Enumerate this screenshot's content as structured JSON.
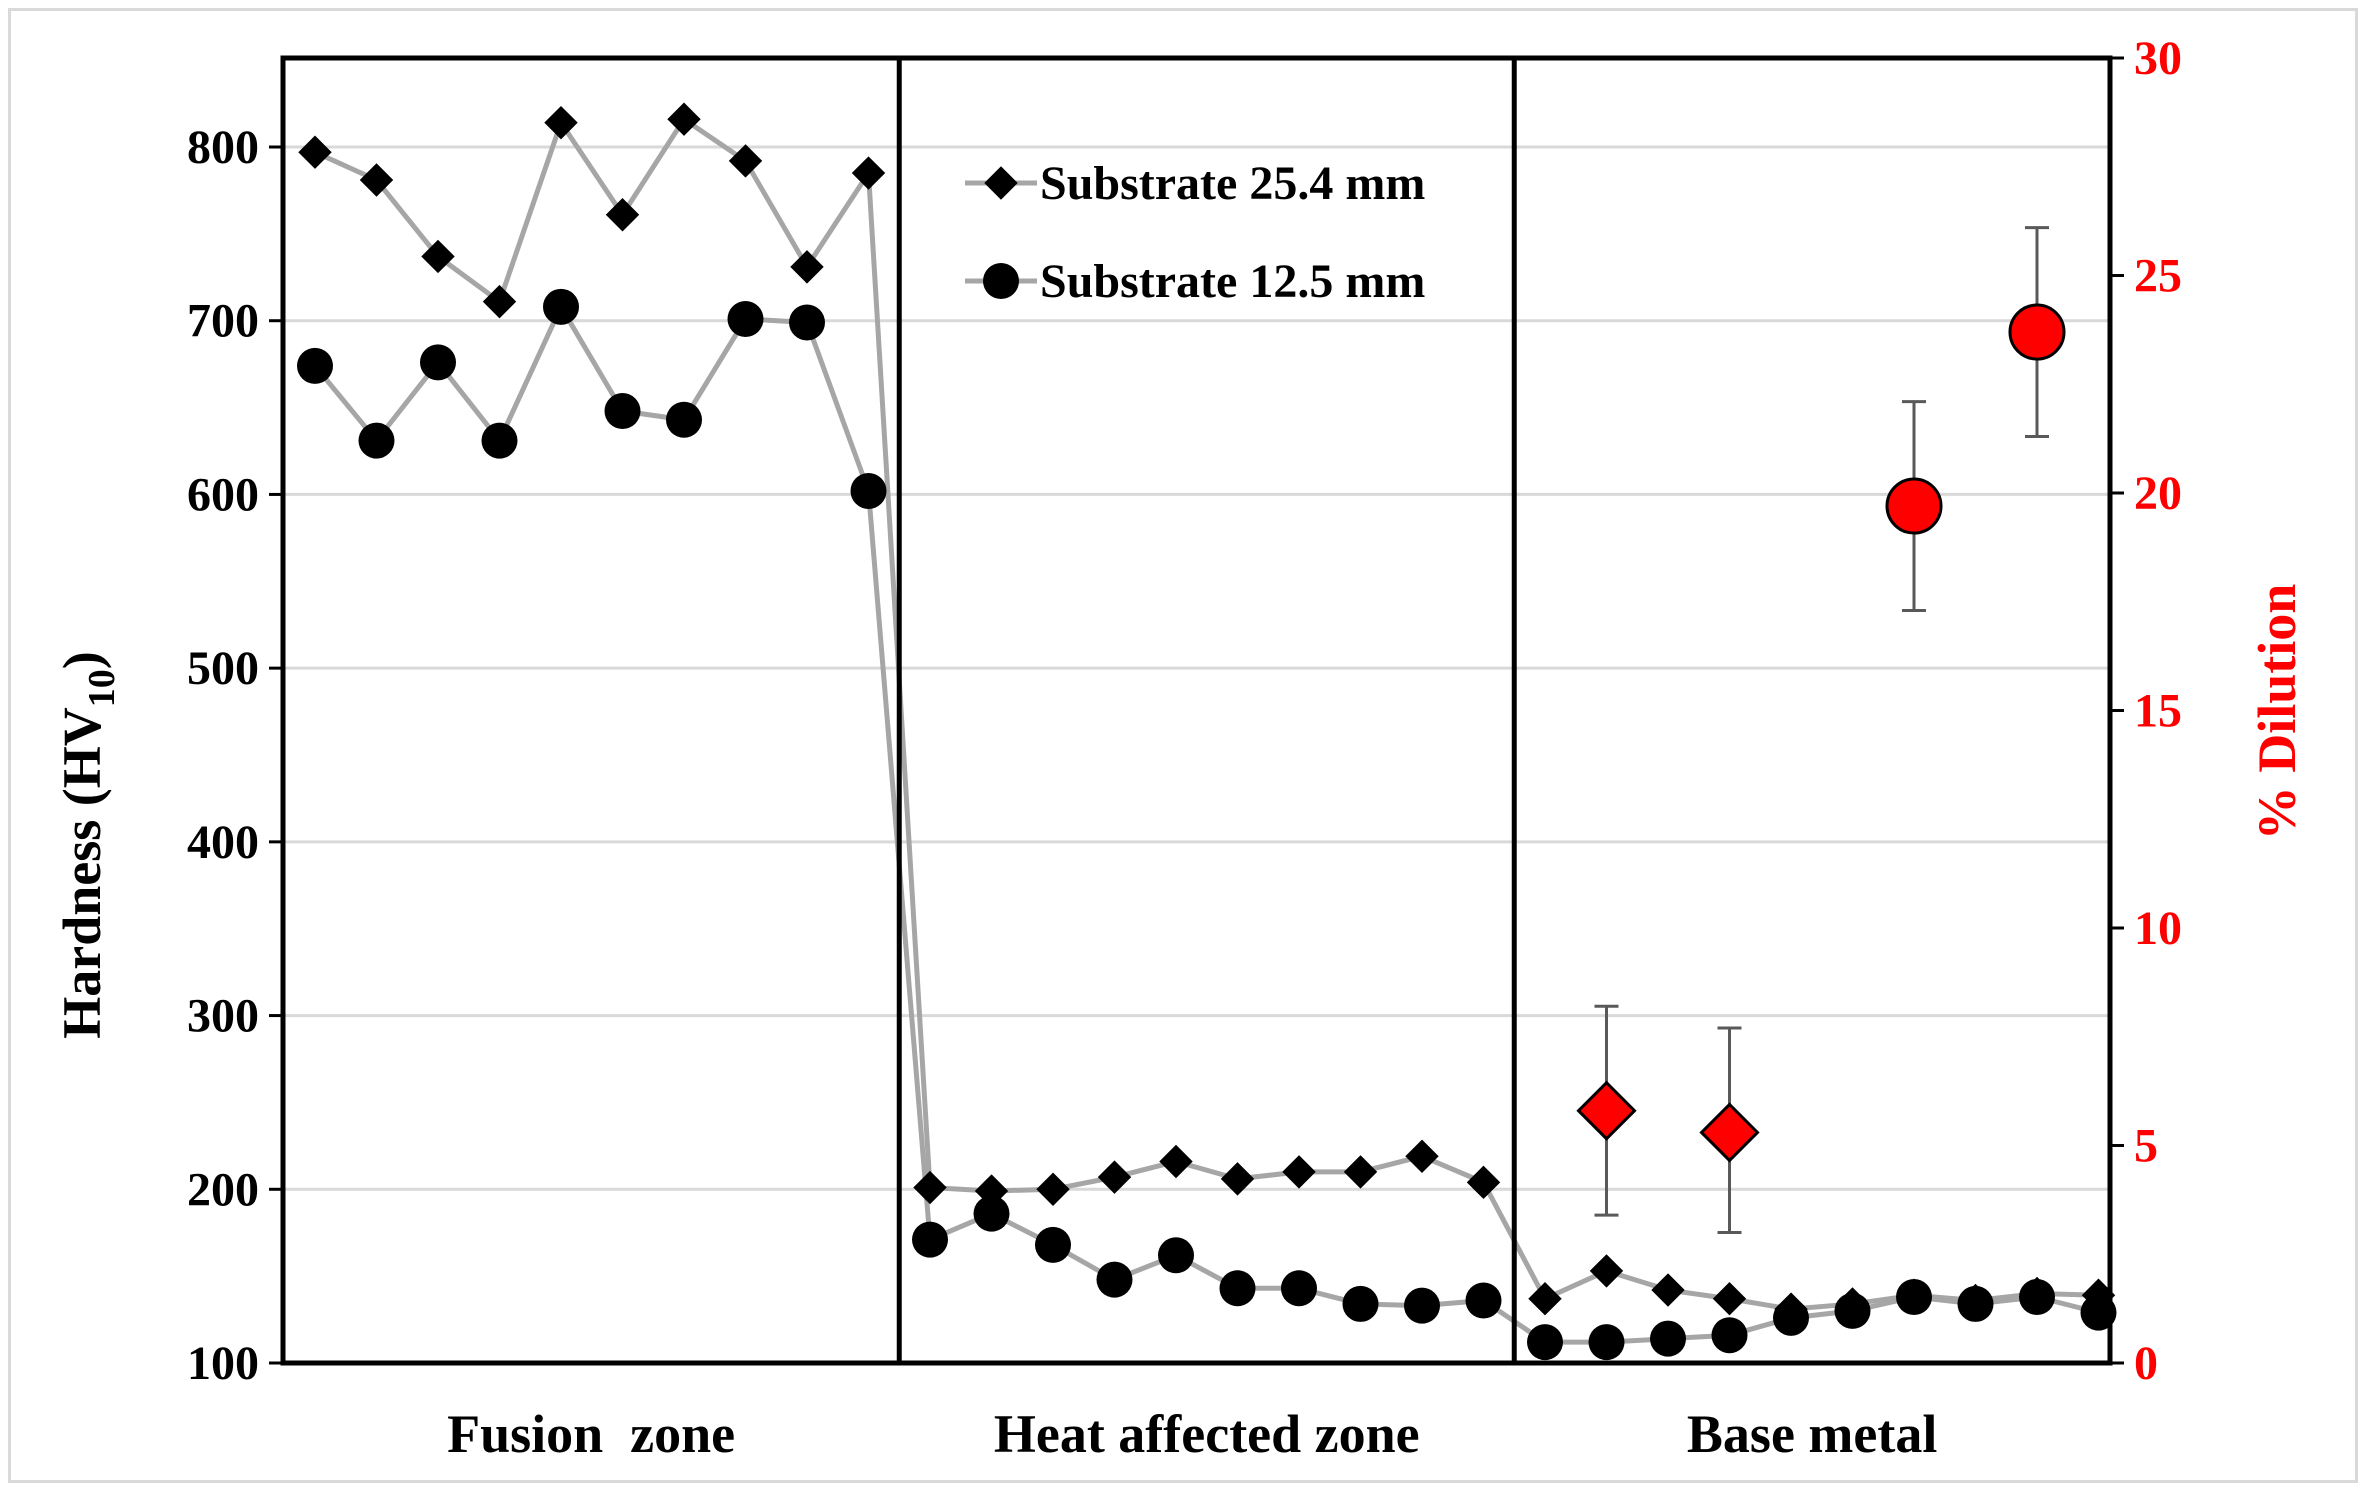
{
  "chart_data": {
    "type": "line",
    "title": "",
    "xlabel": "",
    "ylabel": "Hardness (HV",
    "ylabel_subscript": "10",
    "ylabel_close": ")",
    "y2label": "% Dilution",
    "ylim": [
      100,
      850
    ],
    "y2lim": [
      0,
      30
    ],
    "yticks": [
      "100",
      "200",
      "300",
      "400",
      "500",
      "600",
      "700",
      "800"
    ],
    "y2ticks": [
      "0",
      "5",
      "10",
      "15",
      "20",
      "25",
      "30"
    ],
    "grid": true,
    "legend_position": "top-center",
    "zones": [
      "Fusion  zone",
      "Heat affected zone",
      "Base metal"
    ],
    "point_count": 30,
    "series": [
      {
        "name": "Substrate 25.4 mm",
        "marker": "diamond",
        "line_color": "#a6a6a6",
        "marker_color": "#000000",
        "values": [
          797,
          781,
          737,
          711,
          814,
          761,
          816,
          792,
          731,
          785,
          201,
          199,
          200,
          207,
          216,
          206,
          210,
          210,
          219,
          204,
          137,
          153,
          142,
          137,
          131,
          134,
          139,
          136,
          140,
          139
        ]
      },
      {
        "name": "Substrate 12.5 mm",
        "marker": "circle",
        "line_color": "#a6a6a6",
        "marker_color": "#000000",
        "values": [
          674,
          631,
          676,
          631,
          708,
          648,
          643,
          701,
          699,
          602,
          171,
          186,
          168,
          148,
          162,
          143,
          143,
          134,
          133,
          136,
          112,
          112,
          114,
          116,
          126,
          130,
          138,
          134,
          138,
          129
        ]
      }
    ],
    "dilution_series": [
      {
        "name": "Substrate 25.4 mm dilution",
        "marker": "diamond",
        "color": "#ff0000",
        "axis": "right",
        "points": [
          {
            "x_index": 21,
            "value": 5.8,
            "error_low": 3.4,
            "error_high": 8.2
          },
          {
            "x_index": 23,
            "value": 5.3,
            "error_low": 3.0,
            "error_high": 7.7
          }
        ]
      },
      {
        "name": "Substrate 12.5 mm dilution",
        "marker": "circle",
        "color": "#ff0000",
        "axis": "right",
        "points": [
          {
            "x_index": 26,
            "value": 19.7,
            "error_low": 17.3,
            "error_high": 22.1
          },
          {
            "x_index": 28,
            "value": 23.7,
            "error_low": 21.3,
            "error_high": 26.1
          }
        ]
      }
    ]
  }
}
